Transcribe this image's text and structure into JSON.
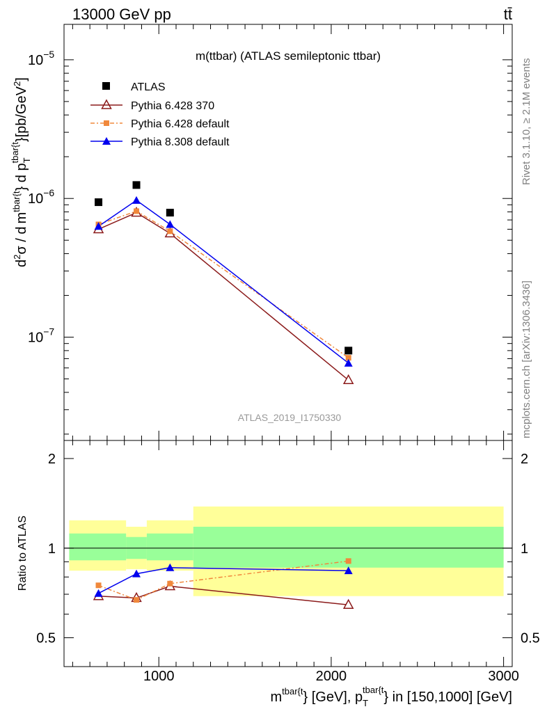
{
  "header": {
    "left": "13000 GeV pp",
    "right": "tt̄"
  },
  "side_labels": {
    "rivet": "Rivet 3.1.10, ≥ 2.1M events",
    "mcplots": "mcplots.cern.ch [arXiv:1306.3436]"
  },
  "colors": {
    "data": "#000000",
    "p6_370": "#8b1a1a",
    "p6_default": "#f0883c",
    "p8_default": "#0000ee",
    "band_inner": "#99ff99",
    "band_outer": "#ffff99"
  },
  "chart_data": [
    {
      "type": "scatter",
      "title": "m(ttbar) (ATLAS semileptonic ttbar)",
      "watermark": "ATLAS_2019_I1750330",
      "ylabel_parts": {
        "a": "d",
        "sup2": "2",
        "sigma": "σ",
        "slash": " / ",
        "d": "d",
        "m": "m",
        "m_sup": "tbar{t",
        "brace": "}",
        "dp": " d p",
        "p_sub": "T",
        "p_sup": "tbar{t",
        "brace2": "}",
        "unit": "[pb/GeV",
        "unit_sup": "2",
        "unit_end": "]"
      },
      "y_log": true,
      "ylim": [
        1.8e-08,
        1.8e-05
      ],
      "xlim": [
        450,
        3050
      ],
      "y_ticks": [
        {
          "value": 1e-07,
          "base": "10",
          "exp": "−7"
        },
        {
          "value": 1e-06,
          "base": "10",
          "exp": "−6"
        },
        {
          "value": 1e-05,
          "base": "10",
          "exp": "−5"
        }
      ],
      "legend": [
        "ATLAS",
        "Pythia 6.428 370",
        "Pythia 6.428 default",
        "Pythia 8.308 default"
      ],
      "legend_position": "top-left",
      "x": [
        650,
        870,
        1065,
        2100
      ],
      "series": [
        {
          "name": "ATLAS",
          "values": [
            9.4e-07,
            1.25e-06,
            7.9e-07,
            8e-08
          ]
        },
        {
          "name": "Pythia 6.428 370",
          "values": [
            6e-07,
            7.9e-07,
            5.6e-07,
            4.9e-08
          ]
        },
        {
          "name": "Pythia 6.428 default",
          "values": [
            6.5e-07,
            8.1e-07,
            5.8e-07,
            7.1e-08
          ]
        },
        {
          "name": "Pythia 8.308 default",
          "values": [
            6.3e-07,
            9.7e-07,
            6.5e-07,
            6.5e-08
          ]
        }
      ]
    },
    {
      "type": "scatter",
      "ylabel": "Ratio to ATLAS",
      "y_log": true,
      "ylim": [
        0.4,
        2.3
      ],
      "xlim": [
        450,
        3050
      ],
      "y_ticks": [
        {
          "value": 0.5,
          "label": "0.5"
        },
        {
          "value": 1,
          "label": "1"
        },
        {
          "value": 2,
          "label": "2"
        }
      ],
      "x_ticks": [
        {
          "value": 1000,
          "label": "1000"
        },
        {
          "value": 2000,
          "label": "2000"
        },
        {
          "value": 3000,
          "label": "3000"
        }
      ],
      "xlabel_parts": {
        "m": "m",
        "m_sup": "tbar{t",
        "rest1": "} [GeV], p",
        "p_sub": "T",
        "p_sup": "tbar{t",
        "rest2": "} in [150,1000] [GeV]"
      },
      "bins": [
        {
          "x0": 480,
          "x1": 810,
          "inner": [
            0.91,
            1.12
          ],
          "outer": [
            0.84,
            1.24
          ]
        },
        {
          "x0": 810,
          "x1": 930,
          "inner": [
            0.92,
            1.09
          ],
          "outer": [
            0.85,
            1.18
          ]
        },
        {
          "x0": 930,
          "x1": 1200,
          "inner": [
            0.91,
            1.12
          ],
          "outer": [
            0.84,
            1.24
          ]
        },
        {
          "x0": 1200,
          "x1": 3000,
          "inner": [
            0.86,
            1.18
          ],
          "outer": [
            0.69,
            1.38
          ]
        }
      ],
      "x": [
        650,
        870,
        1065,
        2100
      ],
      "series": [
        {
          "name": "Pythia 6.428 370",
          "values": [
            0.69,
            0.68,
            0.745,
            0.645
          ]
        },
        {
          "name": "Pythia 6.428 default",
          "values": [
            0.75,
            0.67,
            0.76,
            0.905
          ]
        },
        {
          "name": "Pythia 8.308 default",
          "values": [
            0.705,
            0.82,
            0.86,
            0.84
          ]
        }
      ]
    }
  ]
}
